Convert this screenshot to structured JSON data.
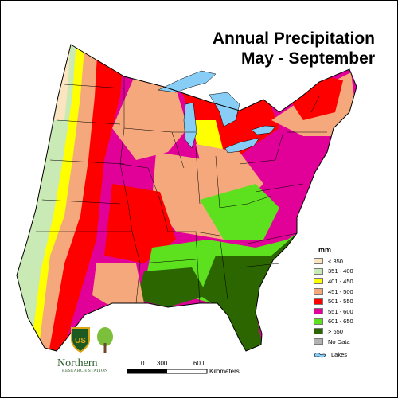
{
  "title": {
    "line1": "Annual Precipitation",
    "line2": "May - September"
  },
  "legend": {
    "unit": "mm",
    "items": [
      {
        "label": "< 350",
        "color": "#fbe5c0"
      },
      {
        "label": "351 - 400",
        "color": "#c9e9b5"
      },
      {
        "label": "401 - 450",
        "color": "#ffff00"
      },
      {
        "label": "451 - 500",
        "color": "#f5a87c"
      },
      {
        "label": "501 - 550",
        "color": "#ff0000"
      },
      {
        "label": "551 - 600",
        "color": "#e10098"
      },
      {
        "label": "601 - 650",
        "color": "#5de11e"
      },
      {
        "label": "> 650",
        "color": "#2c6600"
      },
      {
        "label": "No Data",
        "color": "#b2b2b2"
      }
    ],
    "lakes": {
      "label": "Lakes",
      "color": "#88cdf5"
    }
  },
  "scale_bar": {
    "ticks": [
      "0",
      "300",
      "600"
    ],
    "unit": "Kilometers"
  },
  "logos": {
    "shield_text": "US",
    "org_name": "Northern",
    "org_subtitle": "RESEARCH STATION"
  },
  "colors": {
    "boundary": "#000000",
    "lake": "#88cdf5"
  }
}
